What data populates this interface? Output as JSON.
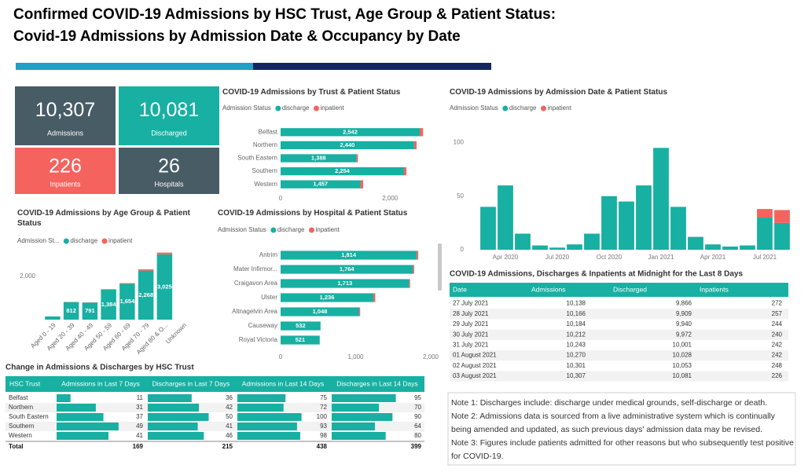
{
  "header": {
    "title": [
      "Confirmed COVID-19 Admissions by HSC Trust, Age Group & Patient Status:",
      "Covid-19 Admissions by Admission Date & Occupancy by Date"
    ]
  },
  "kpis": [
    {
      "value": "10,307",
      "label": "Admissions"
    },
    {
      "value": "10,081",
      "label": "Discharged"
    },
    {
      "value": "226",
      "label": "Inpatients"
    },
    {
      "value": "26",
      "label": "Hospitals"
    }
  ],
  "chart_data": [
    {
      "type": "bar",
      "horizontal": true,
      "title": "COVID-19 Admissions by Trust & Patient Status",
      "legend_title": "Admission Status",
      "categories": [
        "Belfast",
        "Northern",
        "South Eastern",
        "Southern",
        "Western"
      ],
      "series": [
        {
          "name": "discharge",
          "color": "#17b0a2",
          "values": [
            2542,
            2440,
            1388,
            2254,
            1457
          ]
        },
        {
          "name": "inpatient",
          "color": "#f4635e",
          "values": [
            60,
            45,
            25,
            45,
            51
          ]
        }
      ],
      "value_labels": [
        "2,542",
        "2,440",
        "1,388",
        "2,254",
        "1,457"
      ],
      "xlim": [
        0,
        2700
      ],
      "xticks": [
        0,
        {
          "value": 2000,
          "label": "2,000"
        }
      ]
    },
    {
      "type": "bar",
      "title": "COVID-19 Admissions by Age Group & Patient Status",
      "legend_title": "Admission St...",
      "categories": [
        "Aged 0 - 19",
        "Aged 20 - 39",
        "Aged 40 - 49",
        "Aged 50 - 59",
        "Aged 60 - 69",
        "Aged 70 - 79",
        "Aged 80 & O...",
        "Unknown"
      ],
      "series": [
        {
          "name": "discharge",
          "color": "#17b0a2",
          "values": [
            147,
            812,
            791,
            1384,
            1654,
            2268,
            3025,
            0
          ]
        },
        {
          "name": "inpatient",
          "color": "#f4635e",
          "values": [
            2,
            10,
            12,
            25,
            35,
            62,
            80,
            0
          ]
        }
      ],
      "value_labels": [
        null,
        "812",
        "791",
        "1,384",
        "1,654",
        "2,268",
        "3,025",
        null
      ],
      "ylim": [
        0,
        3200
      ],
      "yticks": [
        {
          "value": 2000,
          "label": "2,000"
        }
      ]
    },
    {
      "type": "bar",
      "horizontal": true,
      "title": "COVID-19 Admissions by Hospital & Patient Status",
      "legend_title": "Admission Status",
      "categories": [
        "Antrim",
        "Mater Infirmor...",
        "Craigavon Area",
        "Ulster",
        "Altnagelvin Area",
        "Causeway",
        "Royal Victoria"
      ],
      "series": [
        {
          "name": "discharge",
          "color": "#17b0a2",
          "values": [
            1814,
            1764,
            1713,
            1236,
            1048,
            532,
            521
          ]
        },
        {
          "name": "inpatient",
          "color": "#f4635e",
          "values": [
            20,
            15,
            12,
            25,
            12,
            0,
            0
          ]
        }
      ],
      "value_labels": [
        "1,814",
        "1,764",
        "1,713",
        "1,236",
        "1,048",
        "532",
        "521"
      ],
      "xlim": [
        0,
        2000
      ],
      "xticks": [
        0,
        {
          "value": 1000,
          "label": "1,000"
        },
        {
          "value": 2000,
          "label": "2,000"
        }
      ]
    },
    {
      "type": "bar",
      "title": "COVID-19 Admissions by Admission Date & Patient Status",
      "legend_title": "Admission Status",
      "x": [
        "Mar 2020",
        "Apr 2020",
        "May 2020",
        "Jun 2020",
        "Jul 2020",
        "Aug 2020",
        "Sep 2020",
        "Oct 2020",
        "Nov 2020",
        "Dec 2020",
        "Jan 2021",
        "Feb 2021",
        "Mar 2021",
        "Apr 2021",
        "May 2021",
        "Jun 2021",
        "Jul 2021",
        "Aug 2021"
      ],
      "series": [
        {
          "name": "discharge",
          "color": "#17b0a2",
          "values": [
            40,
            60,
            15,
            4,
            2,
            5,
            15,
            50,
            45,
            60,
            95,
            40,
            12,
            5,
            3,
            4,
            30,
            25
          ]
        },
        {
          "name": "inpatient",
          "color": "#f4635e",
          "values": [
            0,
            0,
            0,
            0,
            0,
            0,
            0,
            0,
            0,
            0,
            0,
            0,
            0,
            0,
            0,
            0,
            8,
            12
          ]
        }
      ],
      "xticks": [
        "Apr 2020",
        "Jul 2020",
        "Oct 2020",
        "Jan 2021",
        "Apr 2021",
        "Jul 2021"
      ],
      "ylim": [
        0,
        115
      ],
      "yticks": [
        0,
        50,
        100
      ]
    }
  ],
  "trust_table": {
    "title": "Change in Admissions & Discharges by HSC Trust",
    "columns": [
      "HSC Trust",
      "Admissions in Last 7 Days",
      "Discharges in Last 7 Days",
      "Admissions in Last 14 Days",
      "Discharges in Last 14 Days"
    ],
    "rows": [
      [
        "Belfast",
        11,
        36,
        75,
        95
      ],
      [
        "Northern",
        31,
        42,
        72,
        70
      ],
      [
        "South Eastern",
        37,
        50,
        100,
        90
      ],
      [
        "Southern",
        49,
        41,
        93,
        64
      ],
      [
        "Western",
        41,
        46,
        98,
        80
      ]
    ],
    "total": [
      "Total",
      169,
      215,
      438,
      399
    ]
  },
  "midnight_table": {
    "title": "COVID-19 Admissions, Discharges & Inpatients at Midnight for the Last 8 Days",
    "columns": [
      "Date",
      "Admissions",
      "Discharged",
      "Inpatients"
    ],
    "rows": [
      [
        "27 July 2021",
        "10,138",
        "9,866",
        272
      ],
      [
        "28 July 2021",
        "10,166",
        "9,909",
        257
      ],
      [
        "29 July 2021",
        "10,184",
        "9,940",
        244
      ],
      [
        "30 July 2021",
        "10,212",
        "9,972",
        240
      ],
      [
        "31 July 2021",
        "10,243",
        "10,001",
        242
      ],
      [
        "01 August 2021",
        "10,270",
        "10,028",
        242
      ],
      [
        "02 August 2021",
        "10,301",
        "10,053",
        248
      ],
      [
        "03 August 2021",
        "10,307",
        "10,081",
        226
      ]
    ]
  },
  "notes": [
    "Note 1: Discharges include: discharge under medical grounds, self-discharge or death.",
    "Note 2: Admissions data is sourced from a live administrative system which is continually being amended and updated, as such previous days' admission data may be revised.",
    "Note 3: Figures include patients admitted for other reasons but who subsequently test positive for COVID-19."
  ]
}
